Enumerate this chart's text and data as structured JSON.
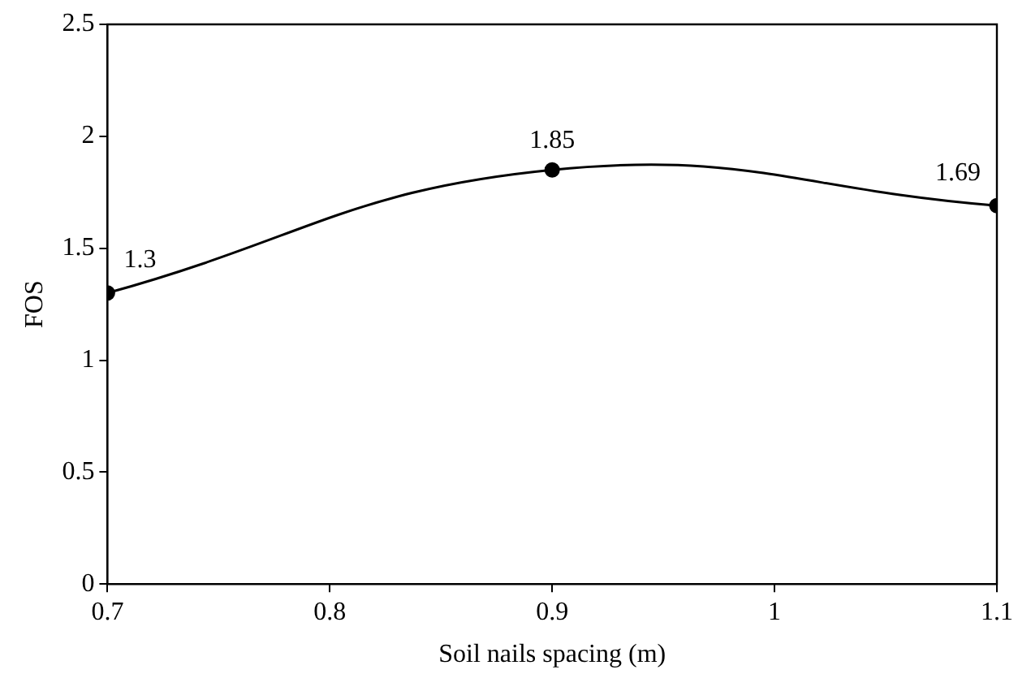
{
  "chart_data": {
    "type": "line",
    "xlabel": "Soil nails spacing (m)",
    "ylabel": "FOS",
    "x": [
      0.7,
      0.9,
      1.1
    ],
    "series": [
      {
        "color": "#000000",
        "values": [
          1.3,
          1.85,
          1.69
        ]
      }
    ],
    "xlim": [
      0.7,
      1.1
    ],
    "xticks": [
      0.7,
      0.8,
      0.9,
      1,
      1.1
    ],
    "ylim": [
      0,
      2.5
    ],
    "yticks": [
      0,
      0.5,
      1,
      1.5,
      2,
      2.5
    ],
    "grid": false,
    "legend": false,
    "marker": "circle",
    "line_style": "solid",
    "data_labels": true
  }
}
